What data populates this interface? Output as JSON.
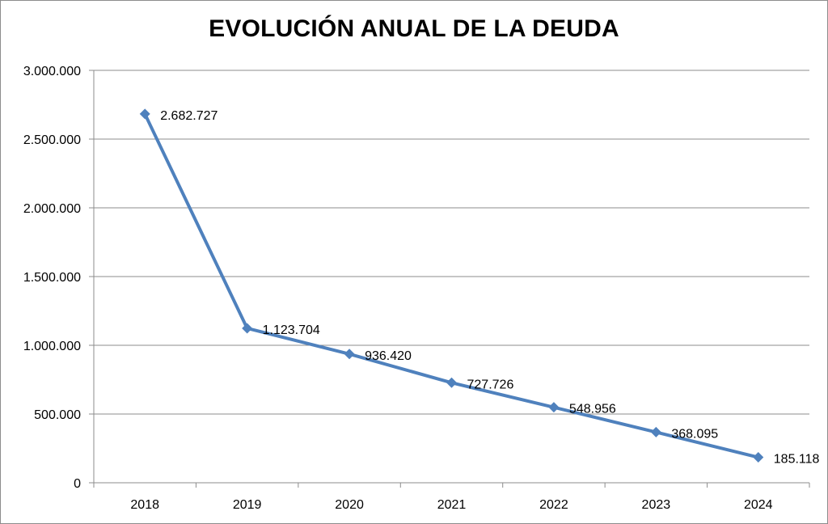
{
  "chart_data": {
    "type": "line",
    "title": "EVOLUCIÓN ANUAL DE LA DEUDA",
    "categories": [
      "2018",
      "2019",
      "2020",
      "2021",
      "2022",
      "2023",
      "2024"
    ],
    "series": [
      {
        "values": [
          2682727,
          1123704,
          936420,
          727726,
          548956,
          368095,
          185118
        ],
        "data_labels": [
          "2.682.727",
          "1.123.704",
          "936.420",
          "727.726",
          "548.956",
          "368.095",
          "185.118"
        ]
      }
    ],
    "y_ticks": [
      0,
      500000,
      1000000,
      1500000,
      2000000,
      2500000,
      3000000
    ],
    "y_tick_labels": [
      "0",
      "500.000",
      "1.000.000",
      "1.500.000",
      "2.000.000",
      "2.500.000",
      "3.000.000"
    ],
    "ylim": [
      0,
      3000000
    ],
    "grid": true,
    "legend": "none",
    "line_color": "#4f81bd",
    "grid_color": "#8c8c8c"
  }
}
